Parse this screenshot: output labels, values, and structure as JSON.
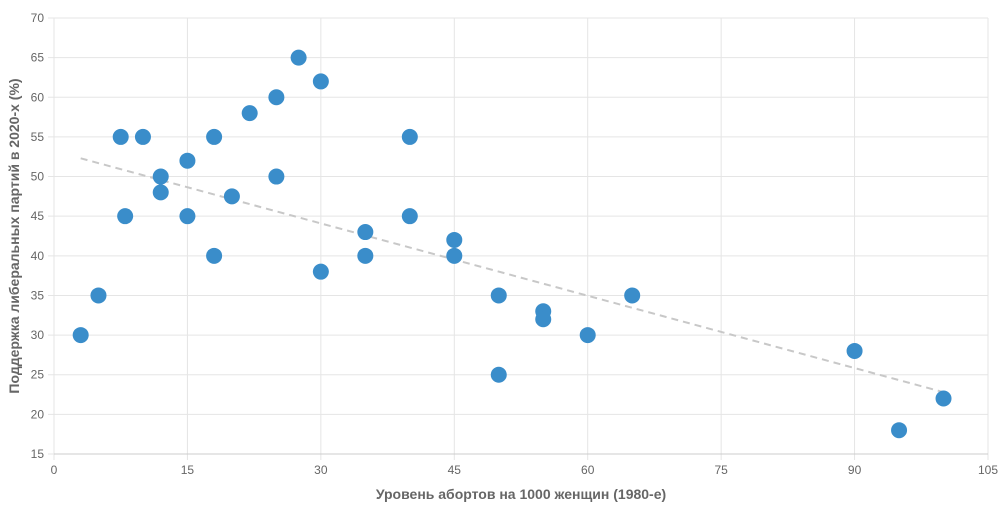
{
  "chart_data": {
    "type": "scatter",
    "xlabel": "Уровень абортов на 1000 женщин (1980-е)",
    "ylabel": "Поддержка либеральных партий в 2020-х (%)",
    "xlim": [
      0,
      105
    ],
    "ylim": [
      15,
      70
    ],
    "x_ticks": [
      "0",
      "15",
      "30",
      "45",
      "60",
      "75",
      "90",
      "105"
    ],
    "y_ticks": [
      "15",
      "20",
      "25",
      "30",
      "35",
      "40",
      "45",
      "50",
      "55",
      "60",
      "65",
      "70"
    ],
    "grid": true,
    "series": [
      {
        "points": [
          {
            "x": 3,
            "y": 30
          },
          {
            "x": 5,
            "y": 35
          },
          {
            "x": 7.5,
            "y": 55
          },
          {
            "x": 8,
            "y": 45
          },
          {
            "x": 10,
            "y": 55
          },
          {
            "x": 12,
            "y": 50
          },
          {
            "x": 12,
            "y": 48
          },
          {
            "x": 15,
            "y": 52
          },
          {
            "x": 15,
            "y": 45
          },
          {
            "x": 18,
            "y": 55
          },
          {
            "x": 18,
            "y": 40
          },
          {
            "x": 20,
            "y": 47.5
          },
          {
            "x": 22,
            "y": 58
          },
          {
            "x": 25,
            "y": 60
          },
          {
            "x": 25,
            "y": 50
          },
          {
            "x": 27.5,
            "y": 65
          },
          {
            "x": 30,
            "y": 62
          },
          {
            "x": 30,
            "y": 38
          },
          {
            "x": 35,
            "y": 43
          },
          {
            "x": 35,
            "y": 40
          },
          {
            "x": 40,
            "y": 55
          },
          {
            "x": 40,
            "y": 45
          },
          {
            "x": 45,
            "y": 42
          },
          {
            "x": 45,
            "y": 40
          },
          {
            "x": 50,
            "y": 35
          },
          {
            "x": 50,
            "y": 25
          },
          {
            "x": 55,
            "y": 33
          },
          {
            "x": 55,
            "y": 32
          },
          {
            "x": 60,
            "y": 30
          },
          {
            "x": 65,
            "y": 35
          },
          {
            "x": 90,
            "y": 28
          },
          {
            "x": 95,
            "y": 18
          },
          {
            "x": 100,
            "y": 22
          }
        ]
      }
    ],
    "trendline": {
      "x1": 3,
      "y1": 52.3,
      "x2": 100,
      "y2": 22.8
    },
    "colors": {
      "points": "#3a8dca",
      "trendline": "#c8c8c8",
      "grid": "#e5e5e5",
      "text": "#666666"
    }
  }
}
